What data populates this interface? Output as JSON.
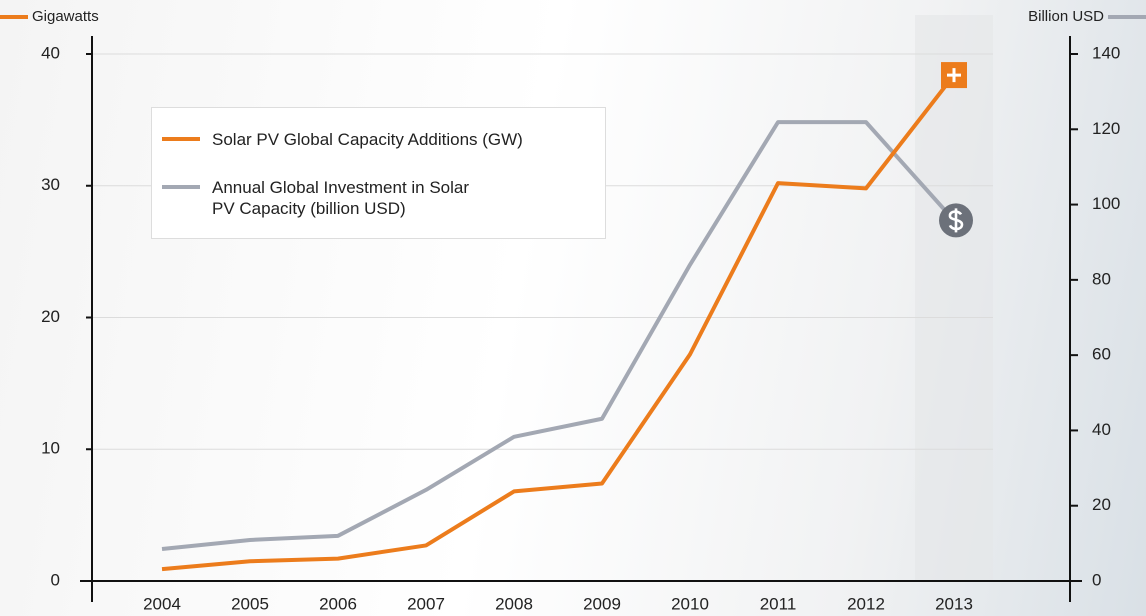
{
  "chart_data": {
    "type": "line",
    "ylabel": "Gigawatts",
    "y2label": "Billion USD",
    "x": [
      "2004",
      "2005",
      "2006",
      "2007",
      "2008",
      "2009",
      "2010",
      "2011",
      "2012",
      "2013"
    ],
    "series": [
      {
        "name": "Solar PV Global Capacity Additions (GW)",
        "color": "#ec7c1c",
        "values": [
          0.9,
          1.5,
          1.7,
          2.7,
          6.8,
          7.4,
          17.2,
          30.2,
          29.8,
          38.4
        ]
      },
      {
        "name": "Annual Global Investment in Solar PV Capacity (billion USD)",
        "color": "#a3a8b3",
        "axis": "y2",
        "values": [
          8.5,
          10.9,
          12,
          24.2,
          38.3,
          43.1,
          84,
          121.9,
          121.9,
          95.8
        ]
      }
    ],
    "ylim": [
      0,
      40
    ],
    "yticks": [
      0,
      10,
      20,
      30,
      40
    ],
    "y2lim": [
      0,
      140
    ],
    "y2ticks": [
      0,
      20,
      40,
      60,
      80,
      100,
      120,
      140
    ],
    "grid": true
  }
}
